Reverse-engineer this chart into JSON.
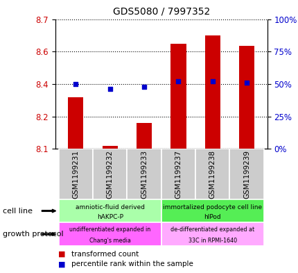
{
  "title": "GDS5080 / 7997352",
  "samples": [
    "GSM1199231",
    "GSM1199232",
    "GSM1199233",
    "GSM1199237",
    "GSM1199238",
    "GSM1199239"
  ],
  "transformed_count": [
    8.34,
    8.112,
    8.22,
    8.585,
    8.625,
    8.575
  ],
  "percentile_rank": [
    50,
    46,
    48,
    52,
    52,
    51
  ],
  "ylim_left": [
    8.1,
    8.7
  ],
  "ylim_right": [
    0,
    100
  ],
  "yticks_left": [
    8.1,
    8.25,
    8.4,
    8.55,
    8.7
  ],
  "yticks_right": [
    0,
    25,
    50,
    75,
    100
  ],
  "bar_color": "#cc0000",
  "dot_color": "#0000cc",
  "bar_bottom": 8.1,
  "cell_line_groups": [
    {
      "label": "amniotic-fluid derived\nhAKPC-P",
      "color": "#aaffaa",
      "samples": [
        0,
        1,
        2
      ]
    },
    {
      "label": "immortalized podocyte cell line\nhIPod",
      "color": "#55ee55",
      "samples": [
        3,
        4,
        5
      ]
    }
  ],
  "growth_protocol_groups": [
    {
      "label": "undifferentiated expanded in\nChang's media",
      "color": "#ff66ff",
      "samples": [
        0,
        1,
        2
      ]
    },
    {
      "label": "de-differentiated expanded at\n33C in RPMI-1640",
      "color": "#ffaaff",
      "samples": [
        3,
        4,
        5
      ]
    }
  ],
  "cell_line_label": "cell line",
  "growth_protocol_label": "growth protocol",
  "legend_red_label": "transformed count",
  "legend_blue_label": "percentile rank within the sample",
  "axis_label_color_left": "#cc0000",
  "axis_label_color_right": "#0000cc",
  "gray_bg": "#cccccc"
}
